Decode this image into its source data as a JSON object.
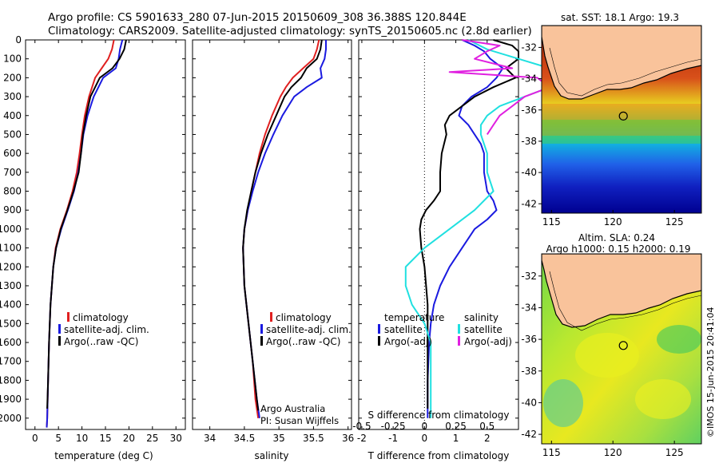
{
  "header": {
    "line1": "Argo profile: CS 5901633_280 07-Jun-2015 20150609_308 36.388S 120.844E",
    "line2": "Climatology: CARS2009. Satellite-adjusted climatology: synTS_20150605.nc (2.8d earlier)"
  },
  "colors": {
    "red": "#e02020",
    "blue": "#1a1ae0",
    "black": "#000000",
    "cyan": "#20e0e0",
    "magenta": "#e020e0"
  },
  "depth_ticks": [
    0,
    100,
    200,
    300,
    400,
    500,
    600,
    700,
    800,
    900,
    1000,
    1100,
    1200,
    1300,
    1400,
    1500,
    1600,
    1700,
    1800,
    1900,
    2000
  ],
  "chart_data": [
    {
      "type": "line",
      "panel": "temperature",
      "xlabel": "temperature (deg C)",
      "xticks": [
        0,
        5,
        10,
        15,
        20,
        25,
        30
      ],
      "xlim": [
        -2,
        32
      ],
      "ylim": [
        2060,
        0
      ],
      "legend": [
        "climatology",
        "satellite-adj. clim.",
        "Argo(..raw -QC)"
      ],
      "series": [
        {
          "name": "climatology",
          "color": "red",
          "depth": [
            0,
            50,
            100,
            150,
            200,
            300,
            400,
            500,
            600,
            700,
            800,
            900,
            1000,
            1100,
            1200,
            1400,
            1600,
            1800,
            2000,
            2050
          ],
          "values": [
            16.8,
            16.4,
            15.6,
            14.2,
            12.8,
            11.5,
            10.6,
            10.0,
            9.5,
            8.9,
            8.0,
            6.8,
            5.4,
            4.4,
            3.9,
            3.3,
            3.0,
            2.8,
            2.6,
            2.5
          ]
        },
        {
          "name": "satellite-adj. clim.",
          "color": "blue",
          "depth": [
            0,
            50,
            100,
            150,
            200,
            300,
            400,
            500,
            600,
            700,
            800,
            900,
            1000,
            1100,
            1200,
            1400,
            1600,
            1800,
            2000,
            2050
          ],
          "values": [
            18.6,
            18.1,
            17.8,
            17.2,
            14.5,
            12.5,
            11.2,
            10.3,
            9.8,
            9.2,
            8.3,
            7.0,
            5.6,
            4.5,
            3.9,
            3.3,
            3.0,
            2.8,
            2.6,
            2.5
          ]
        },
        {
          "name": "Argo(..raw -QC)",
          "color": "black",
          "depth": [
            0,
            50,
            100,
            150,
            200,
            300,
            400,
            500,
            600,
            700,
            800,
            900,
            1000,
            1100,
            1200,
            1400,
            1600,
            1800,
            1950
          ],
          "values": [
            19.4,
            19.0,
            18.0,
            16.5,
            13.8,
            11.8,
            10.9,
            10.2,
            9.8,
            9.3,
            8.2,
            6.9,
            5.5,
            4.5,
            3.9,
            3.3,
            3.0,
            2.8,
            2.6
          ]
        }
      ]
    },
    {
      "type": "line",
      "panel": "salinity",
      "xlabel": "salinity",
      "xticks": [
        34,
        34.5,
        35,
        35.5,
        36
      ],
      "xlim": [
        33.75,
        36.05
      ],
      "ylim": [
        2060,
        0
      ],
      "legend": [
        "climatology",
        "satellite-adj. clim.",
        "Argo(..raw -QC)"
      ],
      "annotation1": "Argo Australia",
      "annotation2": "PI: Susan Wijffels",
      "series": [
        {
          "name": "climatology",
          "color": "red",
          "depth": [
            0,
            50,
            100,
            150,
            200,
            250,
            300,
            400,
            500,
            600,
            700,
            800,
            900,
            1000,
            1100,
            1300,
            1500,
            1700,
            1900,
            2000
          ],
          "values": [
            35.58,
            35.55,
            35.5,
            35.35,
            35.2,
            35.1,
            35.02,
            34.9,
            34.8,
            34.72,
            34.66,
            34.6,
            34.55,
            34.5,
            34.48,
            34.5,
            34.56,
            34.62,
            34.66,
            34.7
          ]
        },
        {
          "name": "satellite-adj. clim.",
          "color": "blue",
          "depth": [
            0,
            50,
            100,
            150,
            200,
            250,
            300,
            400,
            500,
            600,
            700,
            800,
            900,
            1000,
            1100,
            1300,
            1500,
            1700,
            1900,
            2000
          ],
          "values": [
            35.68,
            35.68,
            35.66,
            35.6,
            35.62,
            35.4,
            35.22,
            35.05,
            34.92,
            34.8,
            34.7,
            34.62,
            34.55,
            34.5,
            34.48,
            34.5,
            34.56,
            34.62,
            34.68,
            34.72
          ]
        },
        {
          "name": "Argo(..raw -QC)",
          "color": "black",
          "depth": [
            0,
            50,
            100,
            150,
            200,
            250,
            300,
            400,
            500,
            600,
            700,
            800,
            900,
            1000,
            1100,
            1300,
            1500,
            1700,
            1900,
            1960
          ],
          "values": [
            35.62,
            35.6,
            35.55,
            35.4,
            35.32,
            35.18,
            35.08,
            34.96,
            34.84,
            34.74,
            34.66,
            34.6,
            34.54,
            34.5,
            34.48,
            34.5,
            34.56,
            34.62,
            34.68,
            34.7
          ]
        }
      ]
    },
    {
      "type": "line",
      "panel": "difference",
      "xlabel": "T difference from climatology",
      "xlabel_top": "S difference from climatology",
      "xticks": [
        -2,
        -1,
        0,
        1,
        2
      ],
      "xticks_top": [
        -0.5,
        -0.25,
        0,
        0.25,
        0.5
      ],
      "xlim": [
        -2.1,
        3.0
      ],
      "ylim": [
        2060,
        0
      ],
      "legend_titles": [
        "temperature",
        "salinity"
      ],
      "legend": [
        "satellite",
        "Argo(-adj)",
        "satellite",
        "Argo(-adj)"
      ],
      "series": [
        {
          "name": "satellite",
          "quantity": "temperature",
          "color": "blue",
          "depth": [
            0,
            30,
            60,
            100,
            150,
            200,
            250,
            300,
            350,
            400,
            450,
            500,
            550,
            600,
            700,
            800,
            850,
            900,
            950,
            1000,
            1100,
            1200,
            1300,
            1400,
            1500,
            1600,
            1800,
            2000
          ],
          "values": [
            1.2,
            1.6,
            1.9,
            2.1,
            2.5,
            2.3,
            2.0,
            1.5,
            1.2,
            1.1,
            1.4,
            1.6,
            1.8,
            1.9,
            1.9,
            2.0,
            2.2,
            2.3,
            2.0,
            1.6,
            1.2,
            0.8,
            0.5,
            0.3,
            0.2,
            0.15,
            0.1,
            0.1
          ]
        },
        {
          "name": "Argo(-adj)",
          "quantity": "temperature",
          "color": "black",
          "depth": [
            0,
            30,
            60,
            100,
            150,
            200,
            250,
            300,
            350,
            400,
            450,
            500,
            600,
            700,
            800,
            850,
            900,
            950,
            1000,
            1100,
            1200,
            1400,
            1600,
            1800,
            1950
          ],
          "values": [
            2.2,
            2.8,
            3.0,
            3.0,
            2.6,
            2.9,
            2.2,
            1.6,
            1.2,
            0.8,
            0.65,
            0.7,
            0.55,
            0.5,
            0.5,
            0.3,
            0.05,
            -0.1,
            -0.15,
            -0.1,
            0.0,
            0.1,
            0.1,
            0.1,
            0.1
          ]
        },
        {
          "name": "satellite",
          "quantity": "salinity",
          "color": "cyan",
          "depth": [
            0,
            50,
            100,
            150,
            200,
            250,
            300,
            350,
            400,
            450,
            500,
            600,
            700,
            800,
            900,
            1000,
            1100,
            1200,
            1300,
            1400,
            1500,
            1600,
            1800,
            2000
          ],
          "values": [
            0.35,
            0.5,
            0.75,
            1.0,
            1.35,
            1.0,
            0.8,
            0.6,
            0.5,
            0.45,
            0.45,
            0.5,
            0.5,
            0.55,
            0.4,
            0.2,
            0.0,
            -0.15,
            -0.15,
            -0.1,
            0.0,
            0.05,
            0.05,
            0.05
          ]
        },
        {
          "name": "Argo(-adj)",
          "quantity": "salinity",
          "color": "magenta",
          "depth": [
            0,
            30,
            60,
            100,
            150,
            170,
            200,
            250,
            300,
            350,
            400,
            450,
            500
          ],
          "values": [
            0.3,
            0.6,
            0.5,
            0.4,
            0.7,
            0.2,
            0.9,
            1.0,
            0.8,
            0.7,
            0.6,
            0.55,
            0.5
          ]
        }
      ]
    }
  ],
  "maps": {
    "sst": {
      "title": "sat. SST: 18.1 Argo: 19.3"
    },
    "sla": {
      "title1": "Altim. SLA: 0.24",
      "title2": "Argo h1000: 0.15 h2000: 0.19"
    },
    "lat_ticks": [
      "-32",
      "-34",
      "-36",
      "-38",
      "-40",
      "-42"
    ],
    "lon_ticks": [
      "115",
      "120",
      "125"
    ],
    "lon_range": [
      114.2,
      127.2
    ],
    "lat_range": [
      -30.6,
      -42.6
    ],
    "float_lon": 120.844,
    "float_lat": -36.388,
    "watermark": "©IMOS 15-Jun-2015 20:41:04"
  }
}
